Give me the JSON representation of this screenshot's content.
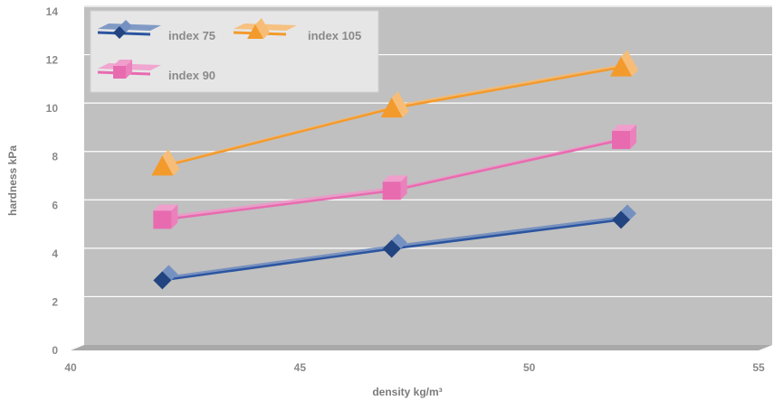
{
  "chart_data": {
    "type": "line",
    "xlabel": "density kg/m³",
    "ylabel": "hardness kPa",
    "xlim": [
      40,
      55
    ],
    "ylim": [
      0,
      14
    ],
    "x_ticks": [
      "40",
      "45",
      "50",
      "55"
    ],
    "y_ticks": [
      "0",
      "2",
      "4",
      "6",
      "8",
      "10",
      "12",
      "14"
    ],
    "grid": true,
    "legend": "top-left",
    "series": [
      {
        "name": "index 75",
        "marker": "diamond",
        "color": "#2b55a0",
        "points": [
          [
            42,
            2.9
          ],
          [
            47,
            4.2
          ],
          [
            52,
            5.4
          ]
        ]
      },
      {
        "name": "index 105",
        "marker": "triangle",
        "color": "#f39a2c",
        "points": [
          [
            42,
            7.6
          ],
          [
            47,
            10.0
          ],
          [
            52,
            11.7
          ]
        ]
      },
      {
        "name": "index 90",
        "marker": "square",
        "color": "#e86bb0",
        "points": [
          [
            42,
            5.4
          ],
          [
            47,
            6.6
          ],
          [
            52,
            8.7
          ]
        ]
      }
    ]
  }
}
